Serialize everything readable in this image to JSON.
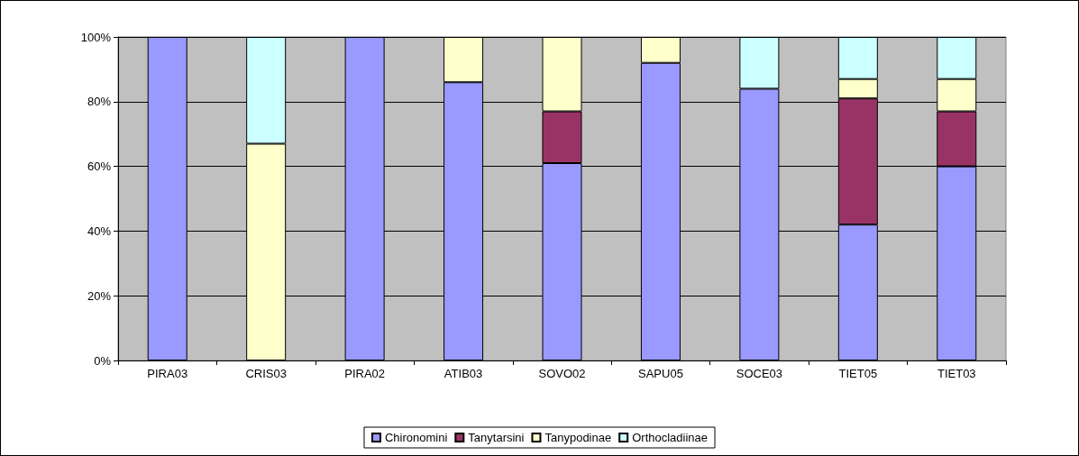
{
  "chart_data": {
    "type": "bar",
    "stacked": true,
    "categories": [
      "PIRA03",
      "CRIS03",
      "PIRA02",
      "ATIB03",
      "SOVO02",
      "SAPU05",
      "SOCE03",
      "TIET05",
      "TIET03"
    ],
    "series": [
      {
        "name": "Chironomini",
        "color": "#9999ff",
        "values": [
          100,
          null,
          100,
          86,
          61,
          92,
          84,
          42,
          60
        ]
      },
      {
        "name": "Tanytarsini",
        "color": "#993366",
        "values": [
          null,
          null,
          null,
          null,
          16,
          null,
          null,
          39,
          17
        ]
      },
      {
        "name": "Tanypodinae",
        "color": "#ffffcc",
        "values": [
          null,
          67,
          null,
          14,
          23,
          8,
          null,
          6,
          10
        ]
      },
      {
        "name": "Orthocladiinae",
        "color": "#ccffff",
        "values": [
          null,
          33,
          null,
          null,
          null,
          null,
          16,
          13,
          13
        ]
      }
    ],
    "ylim": [
      0,
      100
    ],
    "yticks": [
      {
        "value": 0,
        "label": "0%"
      },
      {
        "value": 20,
        "label": "20%"
      },
      {
        "value": 40,
        "label": "40%"
      },
      {
        "value": 60,
        "label": "60%"
      },
      {
        "value": 80,
        "label": "80%"
      },
      {
        "value": 100,
        "label": "100%"
      }
    ],
    "grid": "y",
    "legend": "bottom"
  }
}
